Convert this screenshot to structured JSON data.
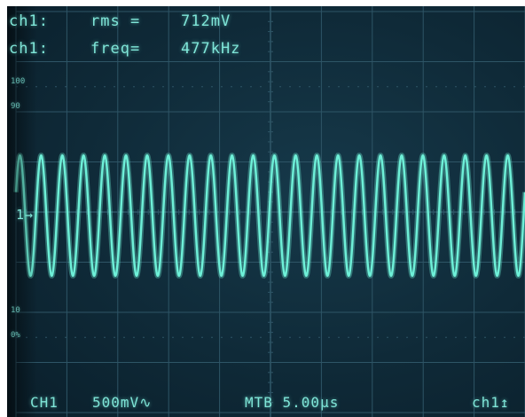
{
  "readouts": {
    "line1": {
      "channel": "ch1:",
      "label": "rms =",
      "value": "712mV"
    },
    "line2": {
      "channel": "ch1:",
      "label": "freq=",
      "value": "477kHz"
    }
  },
  "scale_labels": {
    "top": "100",
    "upper": "90",
    "ground_marker": "1",
    "lower": "10",
    "bottom": "0%"
  },
  "status_bar": {
    "channel": "CH1",
    "volts_div": "500mV∿",
    "timebase": "MTB 5.00μs",
    "trigger": "ch1↥"
  },
  "signal": {
    "waveform": "sine",
    "cycles_across_screen": 24,
    "amplitude_divisions": 2.4,
    "trace_color": "#6ef0d8"
  },
  "colors": {
    "screen_bg": "#0f2a38",
    "grid": "#2e5566",
    "text": "#7fe6d8"
  }
}
